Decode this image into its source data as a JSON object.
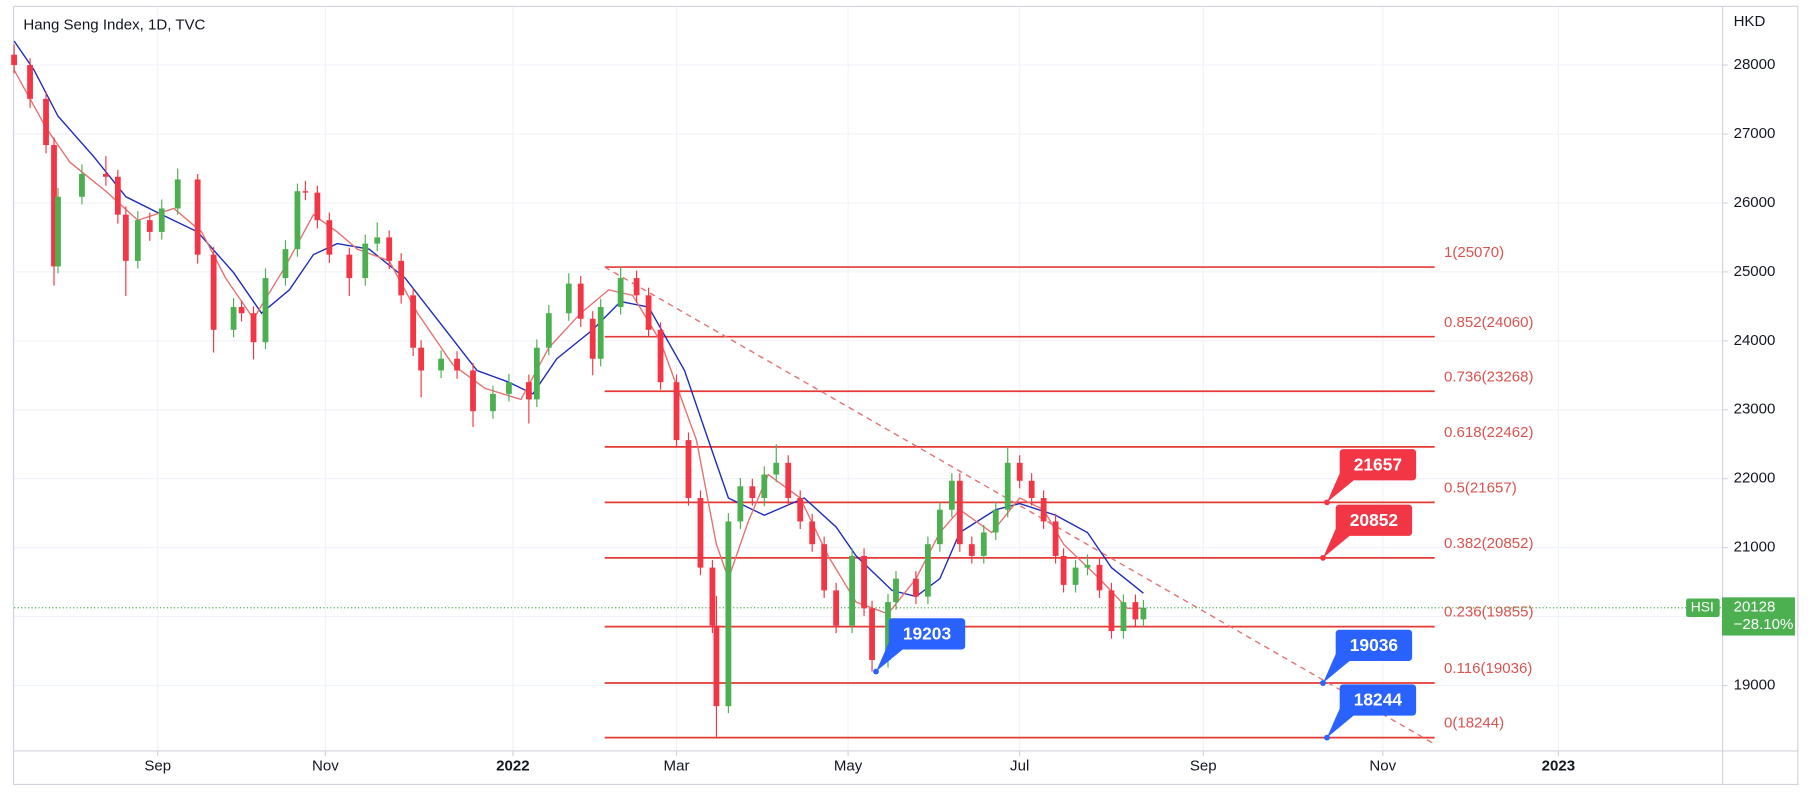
{
  "chart_data": {
    "type": "candlestick",
    "title": "Hang Seng Index, 1D, TVC",
    "currency": "HKD",
    "up_color": "#4caf50",
    "down_color": "#f23645",
    "xlim": [
      0,
      428
    ],
    "ylim": [
      18060,
      28860
    ],
    "xticks": [
      {
        "value": 36,
        "label": "Sep"
      },
      {
        "value": 78,
        "label": "Nov"
      },
      {
        "value": 125,
        "label": "2022"
      },
      {
        "value": 166,
        "label": "Mar"
      },
      {
        "value": 209,
        "label": "May"
      },
      {
        "value": 252,
        "label": "Jul"
      },
      {
        "value": 298,
        "label": "Sep"
      },
      {
        "value": 343,
        "label": "Nov"
      },
      {
        "value": 387,
        "label": "2023"
      }
    ],
    "yticks": [
      19000,
      20000,
      21000,
      22000,
      23000,
      24000,
      25000,
      26000,
      27000,
      28000
    ],
    "grid": true,
    "candles": [
      [
        0,
        28150,
        28300,
        27880,
        28000
      ],
      [
        4,
        28000,
        28100,
        27380,
        27510
      ],
      [
        8,
        27510,
        27620,
        26720,
        26840
      ],
      [
        10,
        26840,
        26950,
        24800,
        25080
      ],
      [
        11,
        25080,
        26220,
        24980,
        26090
      ],
      [
        17,
        26090,
        26560,
        25980,
        26420
      ],
      [
        23,
        26420,
        26680,
        26250,
        26380
      ],
      [
        26,
        26380,
        26480,
        25700,
        25830
      ],
      [
        28,
        25830,
        25950,
        24650,
        25160
      ],
      [
        31,
        25160,
        25880,
        25050,
        25750
      ],
      [
        34,
        25750,
        25860,
        25450,
        25580
      ],
      [
        37,
        25580,
        26050,
        25470,
        25920
      ],
      [
        41,
        25920,
        26500,
        25830,
        26340
      ],
      [
        46,
        26340,
        26420,
        25120,
        25250
      ],
      [
        50,
        25250,
        25360,
        23830,
        24160
      ],
      [
        55,
        24160,
        24620,
        24050,
        24490
      ],
      [
        57,
        24490,
        24580,
        24280,
        24400
      ],
      [
        60,
        24400,
        24500,
        23730,
        23980
      ],
      [
        63,
        23980,
        25050,
        23880,
        24910
      ],
      [
        68,
        24910,
        25460,
        24800,
        25330
      ],
      [
        71,
        25330,
        26280,
        25220,
        26170
      ],
      [
        73,
        26170,
        26320,
        26040,
        26150
      ],
      [
        76,
        26150,
        26250,
        25630,
        25750
      ],
      [
        79,
        25750,
        25860,
        25130,
        25250
      ],
      [
        84,
        25250,
        25350,
        24650,
        24910
      ],
      [
        88,
        24910,
        25540,
        24800,
        25410
      ],
      [
        91,
        25410,
        25720,
        25300,
        25500
      ],
      [
        94,
        25500,
        25600,
        25040,
        25160
      ],
      [
        97,
        25160,
        25270,
        24540,
        24660
      ],
      [
        100,
        24660,
        24760,
        23780,
        23900
      ],
      [
        102,
        23900,
        24010,
        23180,
        23570
      ],
      [
        107,
        23570,
        23860,
        23460,
        23740
      ],
      [
        111,
        23740,
        23850,
        23450,
        23570
      ],
      [
        115,
        23570,
        23680,
        22750,
        22980
      ],
      [
        120,
        22980,
        23350,
        22870,
        23230
      ],
      [
        124,
        23230,
        23520,
        23120,
        23400
      ],
      [
        129,
        23400,
        23510,
        22800,
        23150
      ],
      [
        131,
        23150,
        24020,
        23040,
        23900
      ],
      [
        134,
        23900,
        24520,
        23790,
        24400
      ],
      [
        139,
        24400,
        24980,
        24290,
        24830
      ],
      [
        142,
        24830,
        24940,
        24200,
        24320
      ],
      [
        145,
        24320,
        24430,
        23500,
        23740
      ],
      [
        147,
        23740,
        24610,
        23630,
        24490
      ],
      [
        152,
        24490,
        25070,
        24380,
        24910
      ],
      [
        156,
        24910,
        25020,
        24550,
        24660
      ],
      [
        159,
        24660,
        24770,
        24050,
        24160
      ],
      [
        162,
        24160,
        24270,
        23290,
        23400
      ],
      [
        166,
        23400,
        23510,
        22450,
        22560
      ],
      [
        169,
        22560,
        22670,
        21610,
        21720
      ],
      [
        172,
        21720,
        21830,
        20600,
        20710
      ],
      [
        175,
        20710,
        20820,
        19760,
        19870
      ],
      [
        176,
        19870,
        20300,
        18244,
        18700
      ],
      [
        179,
        18700,
        21500,
        18600,
        21380
      ],
      [
        182,
        21380,
        22010,
        21270,
        21890
      ],
      [
        185,
        21890,
        22000,
        21610,
        21720
      ],
      [
        188,
        21720,
        22180,
        21600,
        22060
      ],
      [
        191,
        22060,
        22500,
        21950,
        22230
      ],
      [
        194,
        22230,
        22340,
        21610,
        21720
      ],
      [
        197,
        21720,
        21830,
        21270,
        21380
      ],
      [
        200,
        21380,
        21490,
        20940,
        21050
      ],
      [
        203,
        21050,
        21160,
        20270,
        20380
      ],
      [
        206,
        20380,
        20490,
        19760,
        19870
      ],
      [
        210,
        19870,
        20990,
        19760,
        20880
      ],
      [
        213,
        20880,
        20990,
        20010,
        20120
      ],
      [
        215,
        20120,
        20230,
        19203,
        19370
      ],
      [
        219,
        19370,
        20330,
        19260,
        20210
      ],
      [
        221,
        20210,
        20660,
        20100,
        20550
      ],
      [
        226,
        20550,
        20660,
        20180,
        20290
      ],
      [
        229,
        20290,
        21160,
        20180,
        21050
      ],
      [
        232,
        21050,
        21660,
        20940,
        21550
      ],
      [
        235,
        21550,
        22080,
        21440,
        21970
      ],
      [
        237,
        21970,
        22080,
        20940,
        21050
      ],
      [
        240,
        21050,
        21160,
        20770,
        20880
      ],
      [
        243,
        20880,
        21330,
        20770,
        21220
      ],
      [
        246,
        21220,
        21660,
        21110,
        21550
      ],
      [
        249,
        21550,
        22460,
        21440,
        22230
      ],
      [
        252,
        22230,
        22340,
        21860,
        21970
      ],
      [
        255,
        21970,
        22080,
        21610,
        21720
      ],
      [
        258,
        21720,
        21830,
        21270,
        21380
      ],
      [
        261,
        21380,
        21490,
        20770,
        20880
      ],
      [
        263,
        20880,
        20990,
        20350,
        20460
      ],
      [
        266,
        20460,
        20820,
        20350,
        20710
      ],
      [
        269,
        20710,
        20900,
        20600,
        20750
      ],
      [
        272,
        20750,
        20860,
        20270,
        20380
      ],
      [
        275,
        20380,
        20490,
        19680,
        19790
      ],
      [
        278,
        19790,
        20320,
        19680,
        20210
      ],
      [
        281,
        20210,
        20320,
        19850,
        19960
      ],
      [
        283,
        19960,
        20240,
        19850,
        20128
      ]
    ],
    "moving_averages": [
      {
        "color": "#1e2bb8",
        "x": [
          0,
          5,
          11,
          20,
          28,
          37,
          46,
          55,
          62,
          69,
          75,
          81,
          89,
          98,
          107,
          116,
          124,
          130,
          136,
          145,
          152,
          159,
          168,
          174,
          179,
          188,
          198,
          206,
          211,
          220,
          226,
          232,
          237,
          246,
          252,
          261,
          269,
          275,
          283
        ],
        "y": [
          28350,
          27930,
          27260,
          26670,
          26090,
          25830,
          25580,
          24990,
          24400,
          24740,
          25250,
          25410,
          25330,
          24910,
          24240,
          23570,
          23400,
          23230,
          23740,
          24160,
          24570,
          24490,
          23570,
          22560,
          21720,
          21470,
          21720,
          21300,
          20880,
          20380,
          20290,
          20550,
          21220,
          21550,
          21640,
          21470,
          21220,
          20710,
          20340
        ]
      },
      {
        "color": "#e57373",
        "x": [
          0,
          8,
          14,
          23,
          31,
          40,
          47,
          53,
          60,
          68,
          75,
          81,
          86,
          94,
          101,
          110,
          118,
          127,
          134,
          142,
          149,
          155,
          162,
          171,
          176,
          179,
          184,
          189,
          197,
          204,
          211,
          219,
          226,
          232,
          237,
          245,
          252,
          258,
          263,
          272,
          279,
          283
        ],
        "y": [
          27930,
          27090,
          26590,
          26170,
          25750,
          25920,
          25580,
          24910,
          24320,
          25080,
          25830,
          25580,
          25330,
          25160,
          24410,
          23650,
          23310,
          23150,
          23900,
          24400,
          24740,
          24660,
          23990,
          22560,
          21050,
          20550,
          21380,
          22060,
          21720,
          20880,
          20210,
          20040,
          20550,
          21220,
          21550,
          21220,
          21720,
          21550,
          21050,
          20550,
          20120,
          20120
        ]
      }
    ],
    "fib_color": "#e53935",
    "fib_range": [
      148,
      356
    ],
    "fib_levels": [
      {
        "label": "1(25070)",
        "value": 25070
      },
      {
        "label": "0.852(24060)",
        "value": 24060
      },
      {
        "label": "0.736(23268)",
        "value": 23268
      },
      {
        "label": "0.618(22462)",
        "value": 22462
      },
      {
        "label": "0.5(21657)",
        "value": 21657
      },
      {
        "label": "0.382(20852)",
        "value": 20852
      },
      {
        "label": "0.236(19855)",
        "value": 19855
      },
      {
        "label": "0.116(19036)",
        "value": 19036
      },
      {
        "label": "0(18244)",
        "value": 18244
      }
    ],
    "trendline": {
      "color": "#e57373",
      "x": [
        148,
        356
      ],
      "y": [
        25070,
        18150
      ]
    },
    "callouts": [
      {
        "value": 21657,
        "x": 329,
        "color": "#f23645"
      },
      {
        "value": 20852,
        "x": 328,
        "color": "#f23645"
      },
      {
        "value": 19203,
        "x": 216,
        "color": "#2962ff"
      },
      {
        "value": 19036,
        "x": 328,
        "color": "#2962ff"
      },
      {
        "value": 18244,
        "x": 329,
        "color": "#2962ff"
      }
    ],
    "last": {
      "symbol": "HSI",
      "value": 20128,
      "change": {
        "value": -28.1,
        "label": "−28.10%"
      },
      "color": "#4caf50"
    }
  }
}
